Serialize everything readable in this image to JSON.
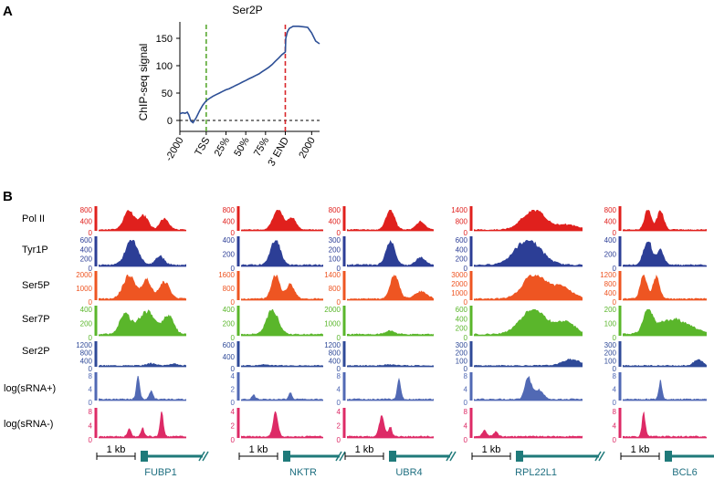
{
  "panel_a": {
    "label": "A",
    "title": "Ser2P",
    "ylabel": "ChIP-seq signal",
    "yticks": [
      "0",
      "50",
      "100",
      "150"
    ],
    "xticks": [
      "-2000",
      "TSS",
      "25%",
      "50%",
      "75%",
      "3' END",
      "2000"
    ],
    "colors": {
      "line": "#2d4f96",
      "tss": "#5aa832",
      "end": "#d9262b"
    }
  },
  "panel_b": {
    "label": "B",
    "scale_bar": "1 kb",
    "tracks": [
      {
        "name": "Pol II",
        "color": "#e0201d"
      },
      {
        "name": "Tyr1P",
        "color": "#2c3e96"
      },
      {
        "name": "Ser5P",
        "color": "#ee5522"
      },
      {
        "name": "Ser7P",
        "color": "#5ab62b"
      },
      {
        "name": "Ser2P",
        "color": "#2f4a98"
      },
      {
        "name": "log(sRNA+)",
        "color": "#5169b4"
      },
      {
        "name": "log(sRNA-)",
        "color": "#dd2a66"
      }
    ],
    "genes": [
      {
        "name": "FUBP1",
        "ticks": [
          [
            "800",
            "400",
            "0"
          ],
          [
            "600",
            "400",
            "200",
            "0"
          ],
          [
            "2000",
            "1000",
            "0"
          ],
          [
            "400",
            "200",
            "0"
          ],
          [
            "1200",
            "800",
            "400",
            "0"
          ],
          [
            "8",
            "4",
            "0"
          ],
          [
            "8",
            "4",
            "0"
          ]
        ]
      },
      {
        "name": "NKTR",
        "ticks": [
          [
            "800",
            "400",
            "0"
          ],
          [
            "400",
            "200",
            "0"
          ],
          [
            "1600",
            "800",
            "0"
          ],
          [
            "400",
            "200",
            "0"
          ],
          [
            "600",
            "400",
            "0"
          ],
          [
            "4",
            "2",
            "0"
          ],
          [
            "4",
            "2",
            "0"
          ]
        ]
      },
      {
        "name": "UBR4",
        "ticks": [
          [
            "800",
            "400",
            "0"
          ],
          [
            "300",
            "200",
            "100",
            "0"
          ],
          [
            "1400",
            "800",
            "0"
          ],
          [
            "2000",
            "1000",
            "0"
          ],
          [
            "1200",
            "800",
            "400",
            "0"
          ],
          [
            "8",
            "4",
            "0"
          ],
          [
            "4",
            "2",
            "0"
          ]
        ]
      },
      {
        "name": "RPL22L1",
        "ticks": [
          [
            "1400",
            "800",
            "0"
          ],
          [
            "600",
            "400",
            "200",
            "0"
          ],
          [
            "3000",
            "2000",
            "1000",
            "0"
          ],
          [
            "600",
            "400",
            "200",
            "0"
          ],
          [
            "300",
            "200",
            "100",
            "0"
          ],
          [
            "8",
            "4",
            "0"
          ],
          [
            "8",
            "4",
            "0"
          ]
        ]
      },
      {
        "name": "BCL6",
        "ticks": [
          [
            "800",
            "400",
            "0"
          ],
          [
            "400",
            "200",
            "0"
          ],
          [
            "1200",
            "800",
            "400",
            "0"
          ],
          [
            "200",
            "100",
            "0"
          ],
          [
            "300",
            "200",
            "100",
            "0"
          ],
          [
            "8",
            "4",
            "0"
          ],
          [
            "8",
            "4",
            "0"
          ]
        ]
      }
    ]
  },
  "chart_data": {
    "type": "line",
    "title": "Ser2P",
    "xlabel": "",
    "ylabel": "ChIP-seq signal",
    "ylim": [
      -20,
      180
    ],
    "grid": false,
    "x_categories": [
      "-2000",
      "TSS",
      "25%",
      "50%",
      "75%",
      "3' END",
      "2000"
    ],
    "x": [
      0,
      0.1,
      0.2,
      0.28,
      0.34,
      0.38,
      0.42,
      0.5,
      0.62,
      0.75,
      0.87,
      1.0,
      1.12,
      1.25,
      1.37,
      1.5,
      1.62,
      1.75,
      1.87,
      2.0,
      2.12,
      2.25,
      2.37,
      2.5,
      2.62,
      2.75,
      2.87,
      3.0,
      3.12,
      3.25,
      3.37,
      3.5,
      3.62,
      3.75,
      3.87,
      4.0,
      4.02,
      4.08,
      4.15,
      4.3,
      4.5,
      4.7,
      4.85,
      5.0,
      5.15,
      5.3
    ],
    "series": [
      {
        "name": "Ser2P",
        "values": [
          12,
          14,
          13,
          15,
          10,
          4,
          -1,
          -4,
          5,
          18,
          28,
          36,
          40,
          44,
          47,
          50,
          53,
          56,
          58,
          61,
          64,
          67,
          70,
          73,
          76,
          79,
          82,
          85,
          89,
          93,
          97,
          102,
          108,
          114,
          120,
          125,
          150,
          162,
          168,
          172,
          172,
          171,
          170,
          160,
          145,
          140
        ]
      }
    ],
    "reference_lines": [
      {
        "label": "TSS",
        "x": 1.0,
        "style": "dashed green"
      },
      {
        "label": "3' END",
        "x": 4.0,
        "style": "dashed red"
      },
      {
        "label": "baseline",
        "y": 0,
        "style": "dotted black"
      }
    ]
  }
}
